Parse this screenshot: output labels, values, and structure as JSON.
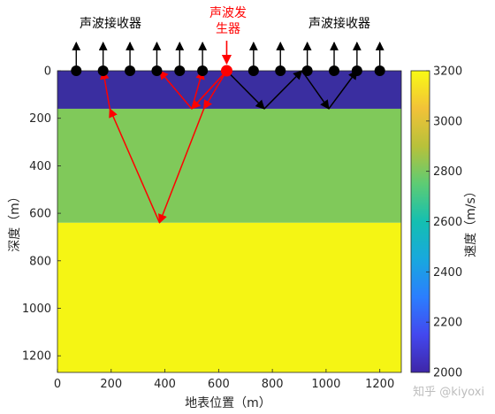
{
  "chart_data": {
    "type": "heatmap",
    "subtype": "layered-velocity-model",
    "xlabel": "地表位置（m）",
    "ylabel": "深度（m）",
    "xlim": [
      0,
      1280
    ],
    "ylim": [
      1270,
      0
    ],
    "y_reversed": true,
    "xticks": [
      0,
      200,
      400,
      600,
      800,
      1000,
      1200
    ],
    "yticks": [
      0,
      200,
      400,
      600,
      800,
      1000,
      1200
    ],
    "layers": [
      {
        "top": 0,
        "bottom": 160,
        "velocity": 2000,
        "color": "#3a2ea0"
      },
      {
        "top": 160,
        "bottom": 640,
        "velocity": 2800,
        "color": "#80c95a"
      },
      {
        "top": 640,
        "bottom": 1270,
        "velocity": 3200,
        "color": "#f5f514"
      }
    ],
    "colorbar": {
      "label": "速度（m/s）",
      "range": [
        2000,
        3200
      ],
      "ticks": [
        2000,
        2200,
        2400,
        2600,
        2800,
        3000,
        3200
      ],
      "colors": [
        "#3e26a8",
        "#4348ef",
        "#2b7efe",
        "#18a8de",
        "#14bfb1",
        "#5dcc74",
        "#b8c13a",
        "#f2c238",
        "#f9fa14"
      ]
    },
    "source": {
      "x": 630,
      "y": 0,
      "label": "声波发生器",
      "color": "#ff0000"
    },
    "receivers": {
      "label_left": "声波接收器",
      "label_right": "声波接收器",
      "x": [
        70,
        170,
        270,
        370,
        455,
        540,
        730,
        830,
        930,
        1030,
        1115,
        1200
      ],
      "color": "#000000"
    },
    "ray_paths": [
      {
        "color": "#ff0000",
        "points": [
          [
            630,
            0
          ],
          [
            500,
            160
          ],
          [
            380,
            0
          ]
        ]
      },
      {
        "color": "#ff0000",
        "points": [
          [
            630,
            0
          ],
          [
            500,
            160
          ],
          [
            540,
            0
          ]
        ]
      },
      {
        "color": "#ff0000",
        "points": [
          [
            630,
            0
          ],
          [
            545,
            160
          ],
          [
            380,
            640
          ],
          [
            195,
            160
          ],
          [
            170,
            0
          ]
        ]
      },
      {
        "color": "#000000",
        "points": [
          [
            630,
            0
          ],
          [
            770,
            160
          ],
          [
            910,
            0
          ],
          [
            1010,
            160
          ],
          [
            1115,
            0
          ]
        ]
      }
    ]
  },
  "watermark": "知乎 @kiyoxi"
}
